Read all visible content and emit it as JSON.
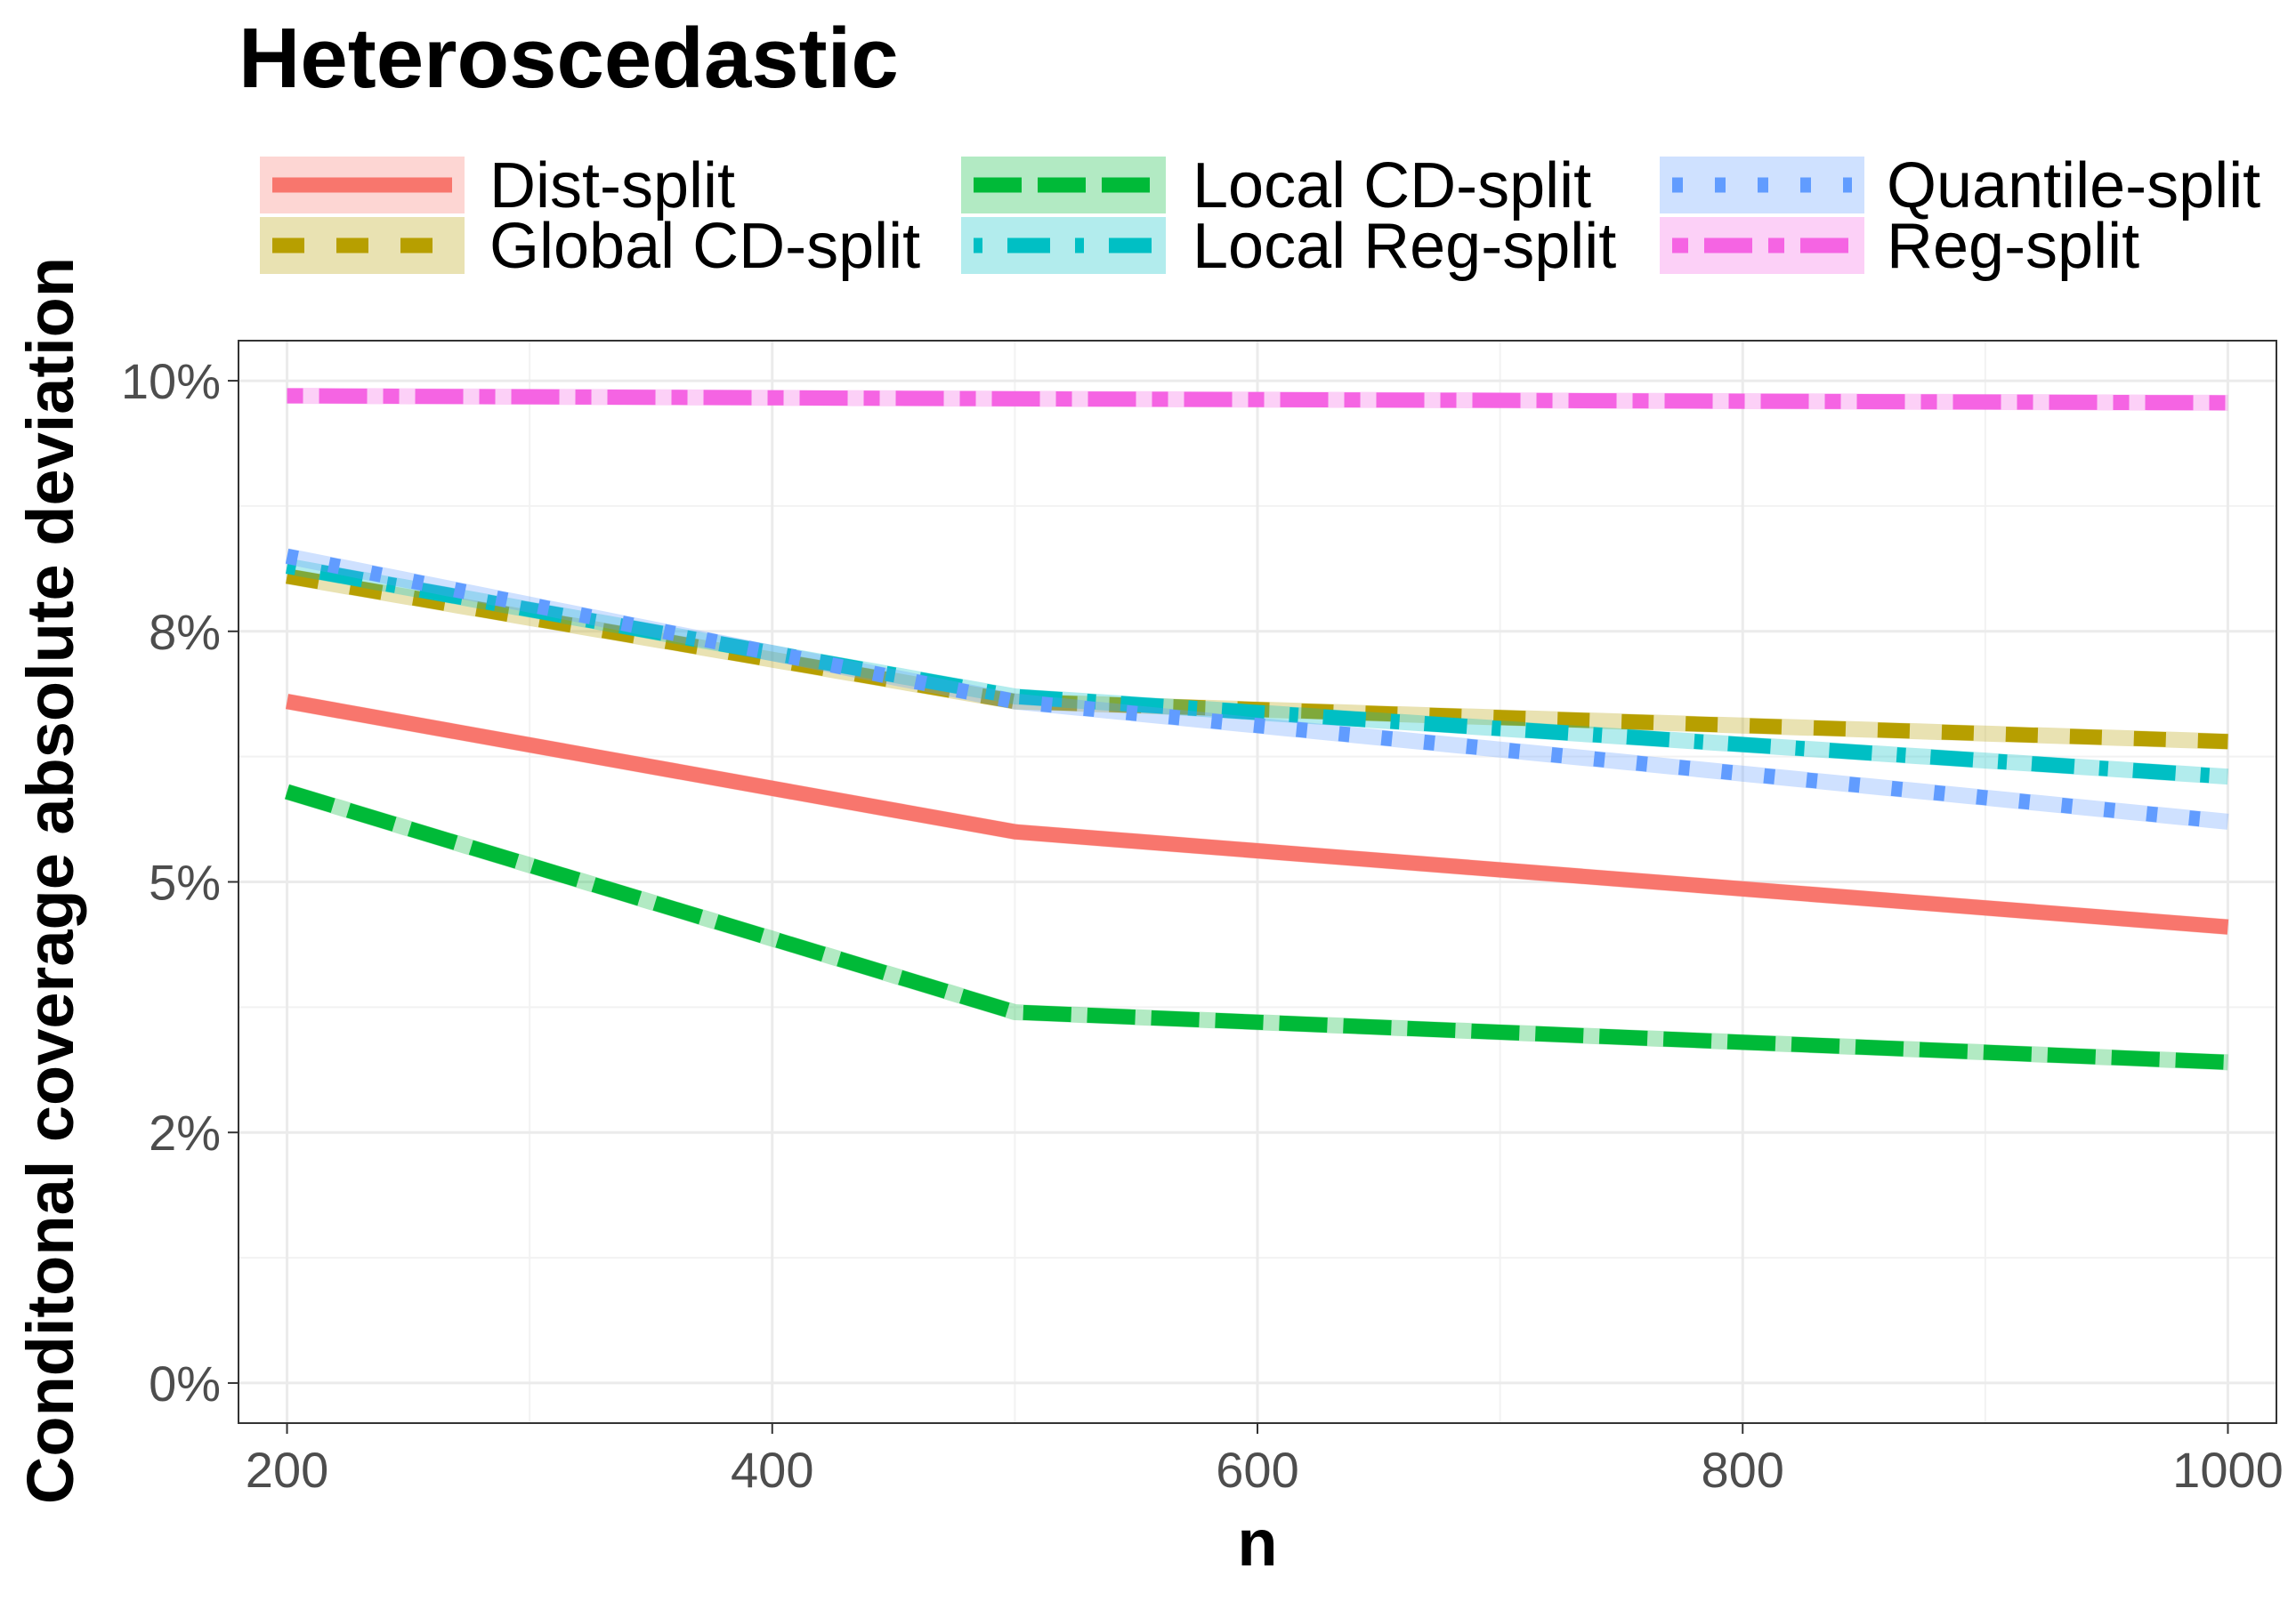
{
  "chart_data": {
    "type": "line",
    "title": "Heteroscedastic",
    "xlabel": "n",
    "ylabel": "Conditonal coverage absolute deviation",
    "x": [
      200,
      500,
      1000
    ],
    "xlim": [
      180,
      1020
    ],
    "ylim": [
      -0.4,
      10.4
    ],
    "x_ticks": [
      200,
      400,
      600,
      800,
      1000
    ],
    "x_tick_labels": [
      "200",
      "400",
      "600",
      "800",
      "1000"
    ],
    "y_ticks": [
      0,
      2.5,
      5,
      7.5,
      10
    ],
    "y_tick_labels": [
      "0%",
      "2%",
      "5%",
      "8%",
      "10%"
    ],
    "grid": true,
    "legend_position": "top",
    "series": [
      {
        "name": "Dist-split",
        "color": "#F8766D",
        "dash": "solid",
        "values": [
          6.8,
          5.5,
          4.55
        ]
      },
      {
        "name": "Global CD-split",
        "color": "#B79F00",
        "dash": "dashed",
        "values": [
          8.05,
          6.8,
          6.4
        ]
      },
      {
        "name": "Local CD-split",
        "color": "#00BA38",
        "dash": "longdash",
        "values": [
          5.9,
          3.7,
          3.2
        ]
      },
      {
        "name": "Local Reg-split",
        "color": "#00BFC4",
        "dash": "dotdash",
        "values": [
          8.15,
          6.85,
          6.05
        ]
      },
      {
        "name": "Quantile-split",
        "color": "#619CFF",
        "dash": "dotted",
        "values": [
          8.25,
          6.8,
          5.6
        ]
      },
      {
        "name": "Reg-split",
        "color": "#F564E3",
        "dash": "twodash",
        "values": [
          9.85,
          9.82,
          9.78
        ]
      }
    ]
  }
}
